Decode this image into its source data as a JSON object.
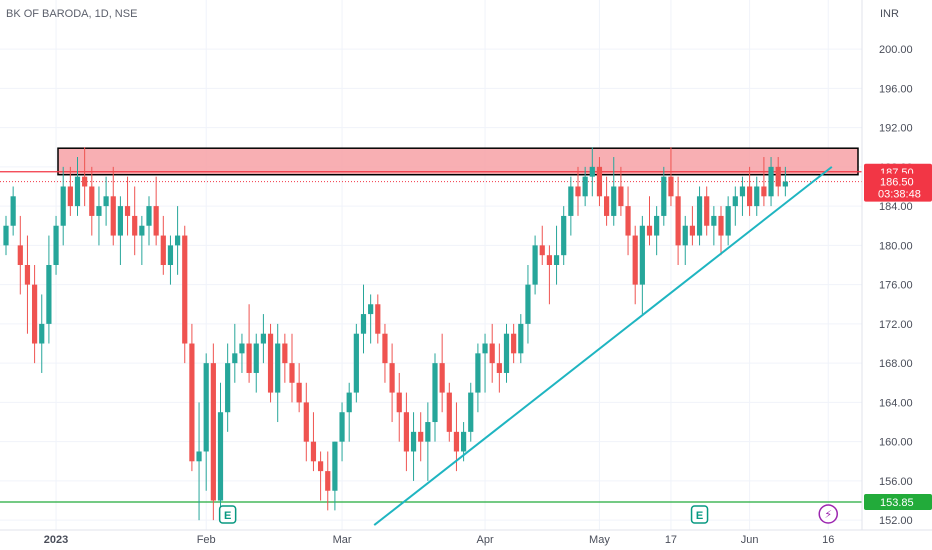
{
  "chart_data": {
    "type": "candlestick",
    "title": "BK OF BARODA, 1D, NSE",
    "currency": "INR",
    "ylim": [
      151,
      205
    ],
    "y_ticks": [
      152,
      156,
      160,
      164,
      168,
      172,
      176,
      180,
      184,
      188,
      192,
      196,
      200
    ],
    "y_tick_labels": [
      "152.00",
      "156.00",
      "160.00",
      "164.00",
      "168.00",
      "172.00",
      "176.00",
      "180.00",
      "184.00",
      "188.00",
      "192.00",
      "196.00",
      "200.00"
    ],
    "x_labels": [
      {
        "label": "2023",
        "index": 7
      },
      {
        "label": "Feb",
        "index": 28
      },
      {
        "label": "Mar",
        "index": 47
      },
      {
        "label": "Apr",
        "index": 67
      },
      {
        "label": "May",
        "index": 83
      },
      {
        "label": "17",
        "index": 93
      },
      {
        "label": "Jun",
        "index": 104
      },
      {
        "label": "16",
        "index": 115
      }
    ],
    "candles": [
      [
        180,
        183,
        179,
        182
      ],
      [
        182,
        186,
        181,
        185
      ],
      [
        180,
        183,
        175,
        178
      ],
      [
        178,
        181,
        171,
        176
      ],
      [
        176,
        178,
        168,
        170
      ],
      [
        170,
        175,
        167,
        172
      ],
      [
        172,
        181,
        170,
        178
      ],
      [
        178,
        183,
        177,
        182
      ],
      [
        182,
        188,
        180,
        186
      ],
      [
        186,
        188,
        183,
        184
      ],
      [
        184,
        189,
        183,
        187
      ],
      [
        187,
        190,
        184,
        186
      ],
      [
        186,
        188,
        181,
        183
      ],
      [
        183,
        186,
        180,
        184
      ],
      [
        184,
        187,
        182,
        185
      ],
      [
        185,
        188,
        180,
        181
      ],
      [
        181,
        185,
        178,
        184
      ],
      [
        184,
        187,
        181,
        183
      ],
      [
        183,
        186,
        179,
        181
      ],
      [
        181,
        183,
        178,
        182
      ],
      [
        182,
        185,
        180,
        184
      ],
      [
        184,
        187,
        180,
        181
      ],
      [
        181,
        183,
        177,
        178
      ],
      [
        178,
        181,
        176,
        180
      ],
      [
        180,
        184,
        177,
        181
      ],
      [
        181,
        182,
        168,
        170
      ],
      [
        170,
        172,
        157,
        158
      ],
      [
        158,
        164,
        152,
        159
      ],
      [
        159,
        169,
        155,
        168
      ],
      [
        168,
        170,
        152,
        154
      ],
      [
        154,
        166,
        152,
        163
      ],
      [
        163,
        170,
        161,
        168
      ],
      [
        168,
        172,
        166,
        169
      ],
      [
        169,
        171,
        167,
        170
      ],
      [
        170,
        174,
        166,
        167
      ],
      [
        167,
        171,
        165,
        170
      ],
      [
        170,
        173,
        168,
        171
      ],
      [
        171,
        172,
        164,
        165
      ],
      [
        165,
        172,
        162,
        170
      ],
      [
        170,
        171,
        166,
        168
      ],
      [
        168,
        171,
        164,
        166
      ],
      [
        166,
        168,
        163,
        164
      ],
      [
        164,
        166,
        158,
        160
      ],
      [
        160,
        163,
        157,
        158
      ],
      [
        158,
        159,
        154,
        157
      ],
      [
        157,
        159,
        153,
        155
      ],
      [
        155,
        160,
        153,
        160
      ],
      [
        160,
        164,
        158,
        163
      ],
      [
        163,
        166,
        160,
        165
      ],
      [
        165,
        172,
        164,
        171
      ],
      [
        171,
        176,
        169,
        173
      ],
      [
        173,
        175,
        170,
        174
      ],
      [
        174,
        175,
        170,
        171
      ],
      [
        171,
        172,
        166,
        168
      ],
      [
        168,
        170,
        162,
        165
      ],
      [
        165,
        167,
        160,
        163
      ],
      [
        163,
        165,
        157,
        159
      ],
      [
        159,
        163,
        156,
        161
      ],
      [
        161,
        163,
        158,
        160
      ],
      [
        160,
        164,
        156,
        162
      ],
      [
        162,
        169,
        160,
        168
      ],
      [
        168,
        171,
        163,
        165
      ],
      [
        165,
        166,
        160,
        161
      ],
      [
        161,
        164,
        157,
        159
      ],
      [
        159,
        162,
        158,
        161
      ],
      [
        161,
        166,
        160,
        165
      ],
      [
        165,
        170,
        163,
        169
      ],
      [
        169,
        171,
        165,
        170
      ],
      [
        170,
        172,
        166,
        168
      ],
      [
        168,
        170,
        165,
        167
      ],
      [
        167,
        172,
        166,
        171
      ],
      [
        171,
        172,
        168,
        169
      ],
      [
        169,
        173,
        168,
        172
      ],
      [
        172,
        178,
        170,
        176
      ],
      [
        176,
        181,
        175,
        180
      ],
      [
        180,
        182,
        178,
        179
      ],
      [
        179,
        180,
        174,
        178
      ],
      [
        178,
        182,
        176,
        179
      ],
      [
        179,
        184,
        178,
        183
      ],
      [
        183,
        187,
        181,
        186
      ],
      [
        186,
        188,
        183,
        185
      ],
      [
        185,
        188,
        184,
        187
      ],
      [
        187,
        190,
        185,
        188
      ],
      [
        188,
        189,
        184,
        185
      ],
      [
        185,
        187,
        182,
        183
      ],
      [
        183,
        189,
        182,
        186
      ],
      [
        186,
        188,
        183,
        184
      ],
      [
        184,
        186,
        179,
        181
      ],
      [
        181,
        182,
        174,
        176
      ],
      [
        176,
        183,
        173,
        182
      ],
      [
        182,
        185,
        180,
        181
      ],
      [
        181,
        184,
        179,
        183
      ],
      [
        183,
        188,
        182,
        187
      ],
      [
        187,
        190,
        184,
        185
      ],
      [
        185,
        187,
        178,
        180
      ],
      [
        180,
        183,
        178,
        182
      ],
      [
        182,
        184,
        180,
        181
      ],
      [
        181,
        186,
        180,
        185
      ],
      [
        185,
        186,
        181,
        182
      ],
      [
        182,
        184,
        180,
        183
      ],
      [
        183,
        184,
        179,
        181
      ],
      [
        181,
        185,
        180,
        184
      ],
      [
        184,
        186,
        182,
        185
      ],
      [
        185,
        187,
        183,
        186
      ],
      [
        186,
        188,
        183,
        184
      ],
      [
        184,
        187,
        183,
        186
      ],
      [
        186,
        189,
        184,
        185
      ],
      [
        185,
        189,
        184,
        188
      ],
      [
        188,
        189,
        185,
        186
      ],
      [
        186,
        188,
        185,
        186.5
      ]
    ],
    "zones": [
      {
        "name": "resistance-zone",
        "y_from": 187.2,
        "y_to": 189.9,
        "color": "#f7a1a6",
        "border": "#000000"
      }
    ],
    "horizontal_lines": [
      {
        "name": "resistance-line",
        "y": 187.5,
        "color": "#f23645",
        "label": "187.50"
      },
      {
        "name": "support-line",
        "y": 153.85,
        "color": "#22ab3a",
        "label": "153.85"
      },
      {
        "name": "last-price-line",
        "y": 186.5,
        "color": "#f23645",
        "dotted": true,
        "label": "186.50",
        "sublabel": "03:38:48"
      }
    ],
    "trendline": {
      "name": "ascending-trendline",
      "from": [
        51.5,
        151.5
      ],
      "to": [
        115.5,
        188
      ],
      "color": "#1fb5c1"
    },
    "markers": [
      {
        "name": "earnings-marker-feb",
        "index": 31,
        "glyph": "E",
        "color": "#089981"
      },
      {
        "name": "earnings-marker-may",
        "index": 97,
        "glyph": "E",
        "color": "#089981"
      },
      {
        "name": "split-marker-jun",
        "index": 115,
        "glyph": "⚡",
        "color": "#9c27b0"
      }
    ],
    "colors": {
      "up": "#26a69a",
      "down": "#ef5350",
      "grid": "#f0f3fa"
    }
  }
}
